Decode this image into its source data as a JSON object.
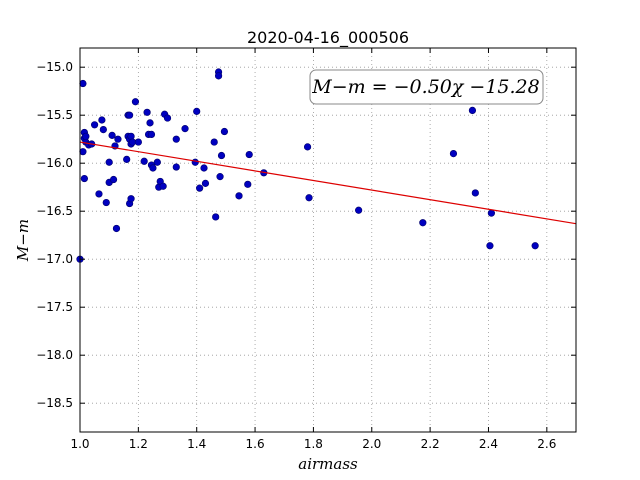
{
  "chart_data": {
    "type": "scatter",
    "title": "2020-04-16_000506",
    "xlabel": "airmass",
    "ylabel": "M−m",
    "xlim": [
      1.0,
      2.7
    ],
    "ylim": [
      -18.8,
      -14.8
    ],
    "y_inverted": false,
    "xticks": [
      1.0,
      1.2,
      1.4,
      1.6,
      1.8,
      2.0,
      2.2,
      2.4,
      2.6
    ],
    "yticks": [
      -15.0,
      -15.5,
      -16.0,
      -16.5,
      -17.0,
      -17.5,
      -18.0,
      -18.5
    ],
    "xtick_labels": [
      "1.0",
      "1.2",
      "1.4",
      "1.6",
      "1.8",
      "2.0",
      "2.2",
      "2.4",
      "2.6"
    ],
    "ytick_labels": [
      "−15.0",
      "−15.5",
      "−16.0",
      "−16.5",
      "−17.0",
      "−17.5",
      "−18.0",
      "−18.5"
    ],
    "grid": true,
    "fit_label": "M−m = −0.50χ −15.28",
    "fit_line": {
      "slope": -0.5,
      "intercept": -15.28
    },
    "colors": {
      "points": "#0000c0",
      "fit": "#dd0000",
      "grid": "#999999"
    },
    "points": [
      [
        1.0,
        -17.0
      ],
      [
        1.01,
        -15.17
      ],
      [
        1.01,
        -15.88
      ],
      [
        1.015,
        -15.68
      ],
      [
        1.015,
        -15.74
      ],
      [
        1.015,
        -16.16
      ],
      [
        1.02,
        -15.78
      ],
      [
        1.02,
        -15.72
      ],
      [
        1.03,
        -15.81
      ],
      [
        1.04,
        -15.8
      ],
      [
        1.05,
        -15.6
      ],
      [
        1.065,
        -16.32
      ],
      [
        1.075,
        -15.55
      ],
      [
        1.08,
        -15.65
      ],
      [
        1.09,
        -16.41
      ],
      [
        1.1,
        -16.2
      ],
      [
        1.1,
        -15.99
      ],
      [
        1.11,
        -15.71
      ],
      [
        1.115,
        -16.17
      ],
      [
        1.12,
        -15.82
      ],
      [
        1.125,
        -16.68
      ],
      [
        1.13,
        -15.75
      ],
      [
        1.16,
        -15.96
      ],
      [
        1.165,
        -15.72
      ],
      [
        1.165,
        -15.5
      ],
      [
        1.17,
        -15.75
      ],
      [
        1.17,
        -15.5
      ],
      [
        1.17,
        -16.42
      ],
      [
        1.175,
        -16.37
      ],
      [
        1.175,
        -15.8
      ],
      [
        1.175,
        -15.72
      ],
      [
        1.18,
        -15.78
      ],
      [
        1.19,
        -15.36
      ],
      [
        1.2,
        -15.78
      ],
      [
        1.22,
        -15.98
      ],
      [
        1.23,
        -15.47
      ],
      [
        1.235,
        -15.7
      ],
      [
        1.24,
        -15.58
      ],
      [
        1.245,
        -15.7
      ],
      [
        1.245,
        -16.02
      ],
      [
        1.25,
        -16.05
      ],
      [
        1.265,
        -15.99
      ],
      [
        1.27,
        -16.25
      ],
      [
        1.275,
        -16.19
      ],
      [
        1.285,
        -16.24
      ],
      [
        1.29,
        -15.49
      ],
      [
        1.3,
        -15.53
      ],
      [
        1.33,
        -15.75
      ],
      [
        1.33,
        -16.04
      ],
      [
        1.36,
        -15.64
      ],
      [
        1.395,
        -15.99
      ],
      [
        1.4,
        -15.46
      ],
      [
        1.41,
        -16.26
      ],
      [
        1.425,
        -16.05
      ],
      [
        1.43,
        -16.21
      ],
      [
        1.46,
        -15.78
      ],
      [
        1.465,
        -16.56
      ],
      [
        1.475,
        -15.05
      ],
      [
        1.475,
        -15.09
      ],
      [
        1.48,
        -16.14
      ],
      [
        1.485,
        -15.92
      ],
      [
        1.495,
        -15.67
      ],
      [
        1.545,
        -16.34
      ],
      [
        1.575,
        -16.22
      ],
      [
        1.58,
        -15.91
      ],
      [
        1.63,
        -16.1
      ],
      [
        1.78,
        -15.83
      ],
      [
        1.785,
        -16.36
      ],
      [
        1.955,
        -16.49
      ],
      [
        2.175,
        -16.62
      ],
      [
        2.28,
        -15.9
      ],
      [
        2.345,
        -15.45
      ],
      [
        2.355,
        -16.31
      ],
      [
        2.405,
        -16.86
      ],
      [
        2.41,
        -16.52
      ],
      [
        2.56,
        -16.86
      ]
    ]
  }
}
